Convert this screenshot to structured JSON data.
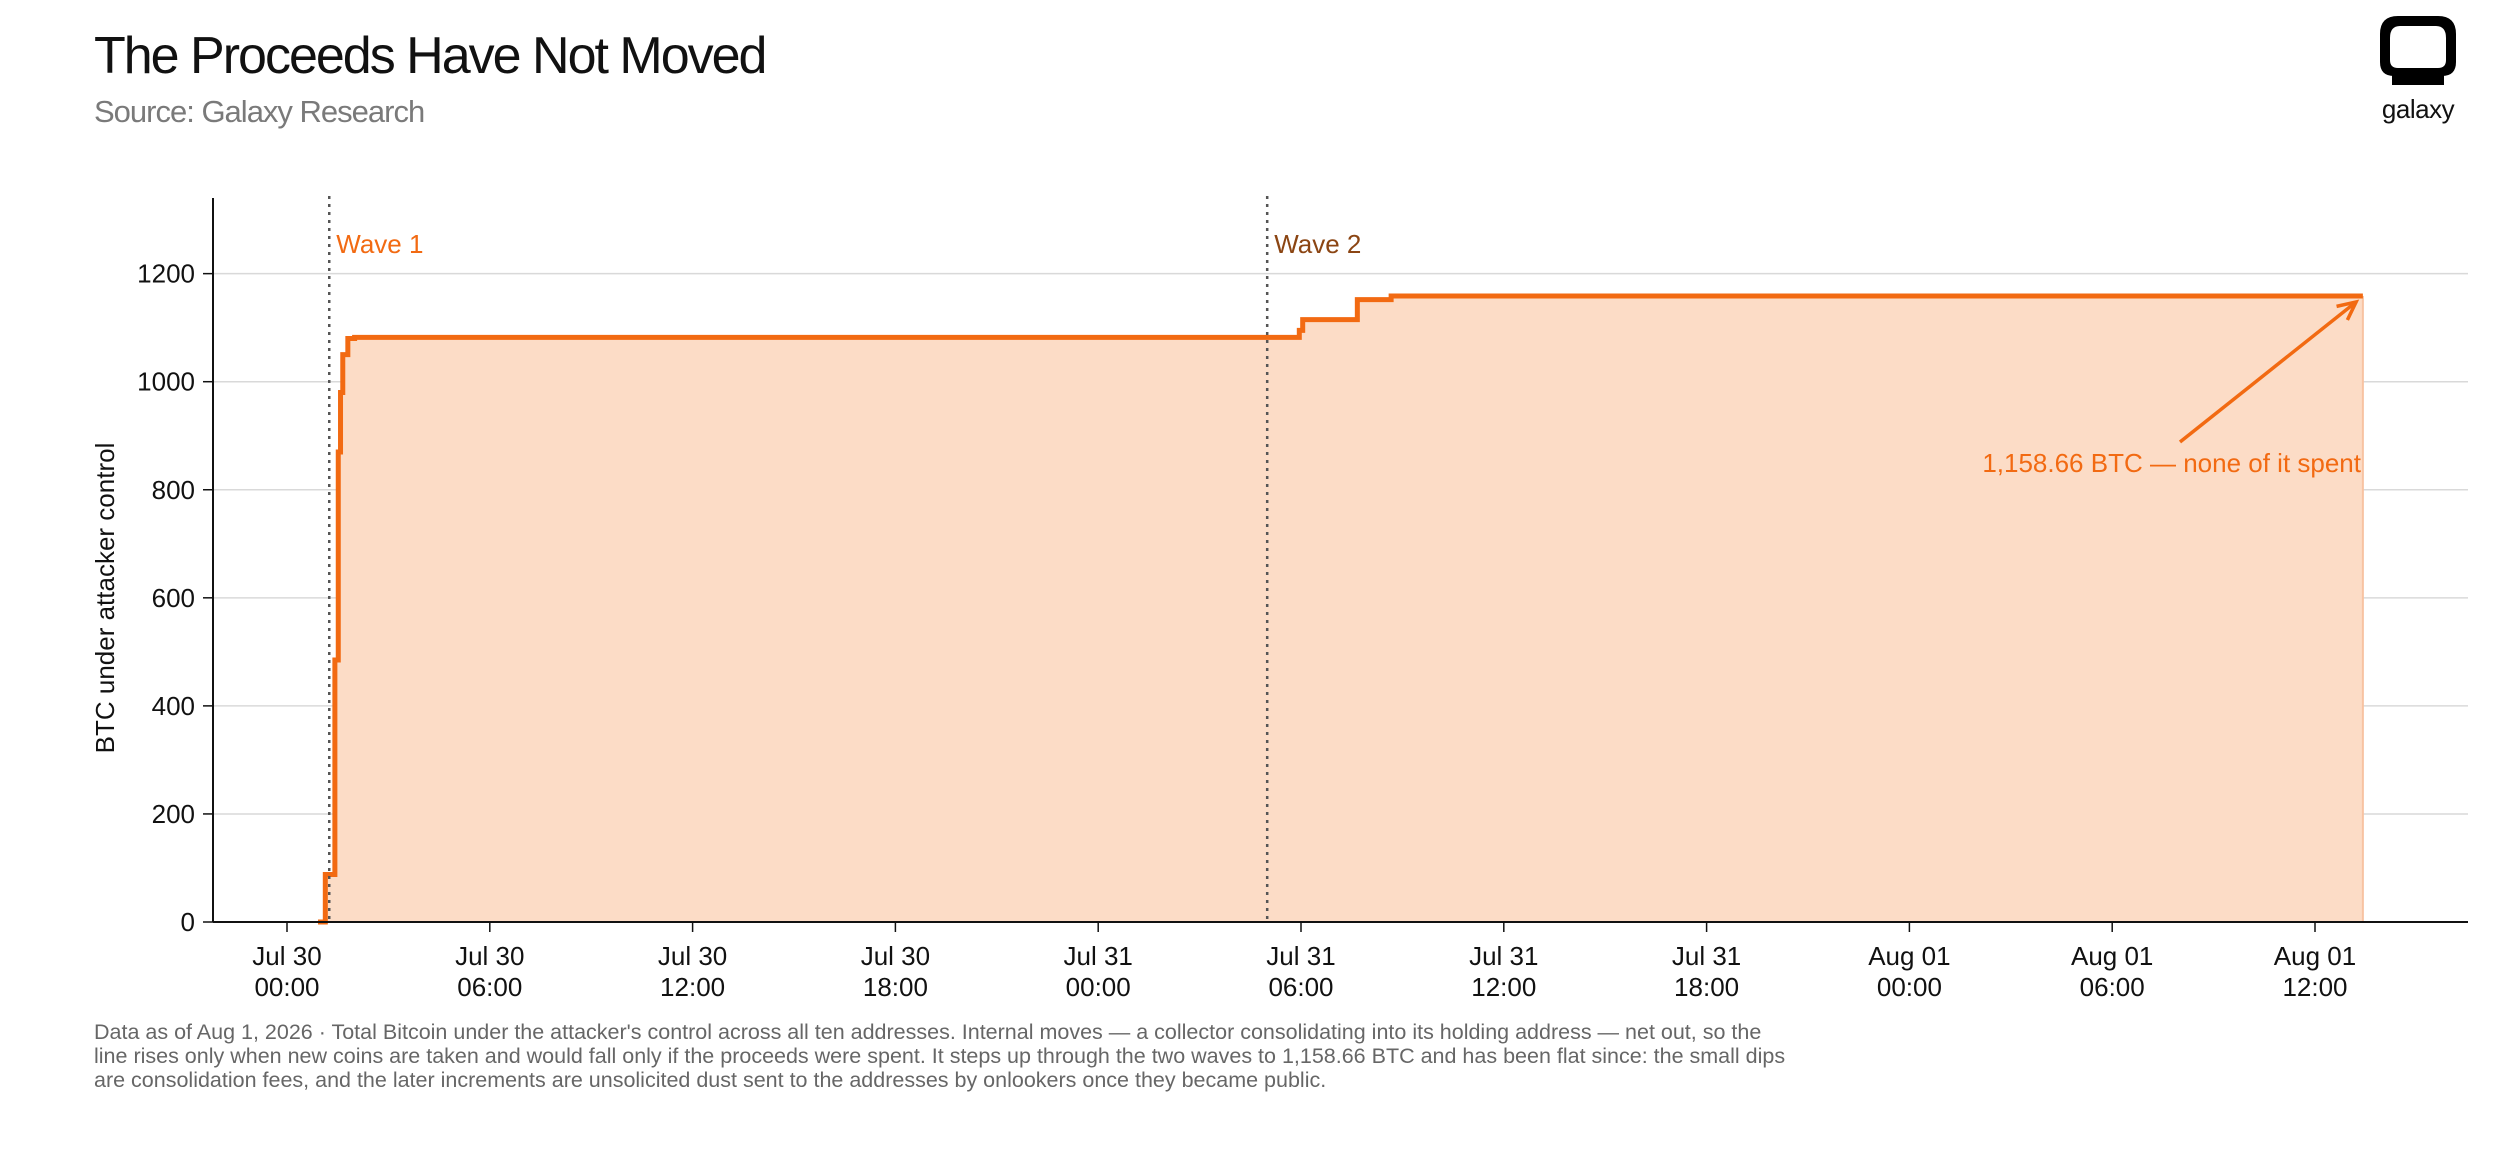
{
  "header": {
    "title": "The Proceeds Have Not Moved",
    "subtitle": "Source: Galaxy Research"
  },
  "logo": {
    "icon": "galaxy-logo-icon",
    "text": "galaxy"
  },
  "colors": {
    "line": "#f26a12",
    "fill": "#fcdcc6",
    "wave2_label": "#8b4513",
    "grid": "#d9d9d9"
  },
  "chart_data": {
    "type": "area",
    "ylabel": "BTC under attacker control",
    "xlabel": "",
    "ylim": [
      0,
      1340
    ],
    "yticks": [
      0,
      200,
      400,
      600,
      800,
      1000,
      1200
    ],
    "grid": "horizontal",
    "xticks": [
      {
        "h": 0,
        "label": [
          "Jul 30",
          "00:00"
        ]
      },
      {
        "h": 6,
        "label": [
          "Jul 30",
          "06:00"
        ]
      },
      {
        "h": 12,
        "label": [
          "Jul 30",
          "12:00"
        ]
      },
      {
        "h": 18,
        "label": [
          "Jul 30",
          "18:00"
        ]
      },
      {
        "h": 24,
        "label": [
          "Jul 31",
          "00:00"
        ]
      },
      {
        "h": 30,
        "label": [
          "Jul 31",
          "06:00"
        ]
      },
      {
        "h": 36,
        "label": [
          "Jul 31",
          "12:00"
        ]
      },
      {
        "h": 42,
        "label": [
          "Jul 31",
          "18:00"
        ]
      },
      {
        "h": 48,
        "label": [
          "Aug 01",
          "00:00"
        ]
      },
      {
        "h": 54,
        "label": [
          "Aug 01",
          "06:00"
        ]
      },
      {
        "h": 60,
        "label": [
          "Aug 01",
          "12:00"
        ]
      }
    ],
    "series": [
      {
        "style": "step",
        "x": [
          "Jul 30 00:55",
          "Jul 30 01:08",
          "Jul 30 01:25",
          "Jul 30 01:31",
          "Jul 30 01:35",
          "Jul 30 01:39",
          "Jul 30 01:48",
          "Jul 30 02:00",
          "Jul 31 05:50",
          "Jul 31 05:57",
          "Jul 31 06:03",
          "Jul 31 07:40",
          "Jul 31 08:40",
          "Aug 01 13:25"
        ],
        "y": [
          0,
          88,
          485,
          870,
          980,
          1050,
          1080,
          1082,
          1082,
          1095,
          1115,
          1152,
          1158.66,
          1158.66
        ]
      }
    ],
    "vlines": [
      {
        "x": "Jul 30 01:15",
        "label": "Wave 1"
      },
      {
        "x": "Jul 31 05:00",
        "label": "Wave 2"
      }
    ],
    "annotation": {
      "text": "1,158.66 BTC — none of it spent",
      "point": {
        "x": "Aug 01 13:20",
        "y": 1158.66
      }
    }
  },
  "footnote": {
    "line1": "Data as of Aug 1, 2026 · Total Bitcoin under the attacker's control across all ten addresses. Internal moves — a collector consolidating into its holding address — net out, so the",
    "line2": "line rises only when new coins are taken and would fall only if the proceeds were spent. It steps up through the two waves to 1,158.66 BTC and has been flat since: the small dips",
    "line3": "are consolidation fees, and the later increments are unsolicited dust sent to the addresses by onlookers once they became public."
  }
}
